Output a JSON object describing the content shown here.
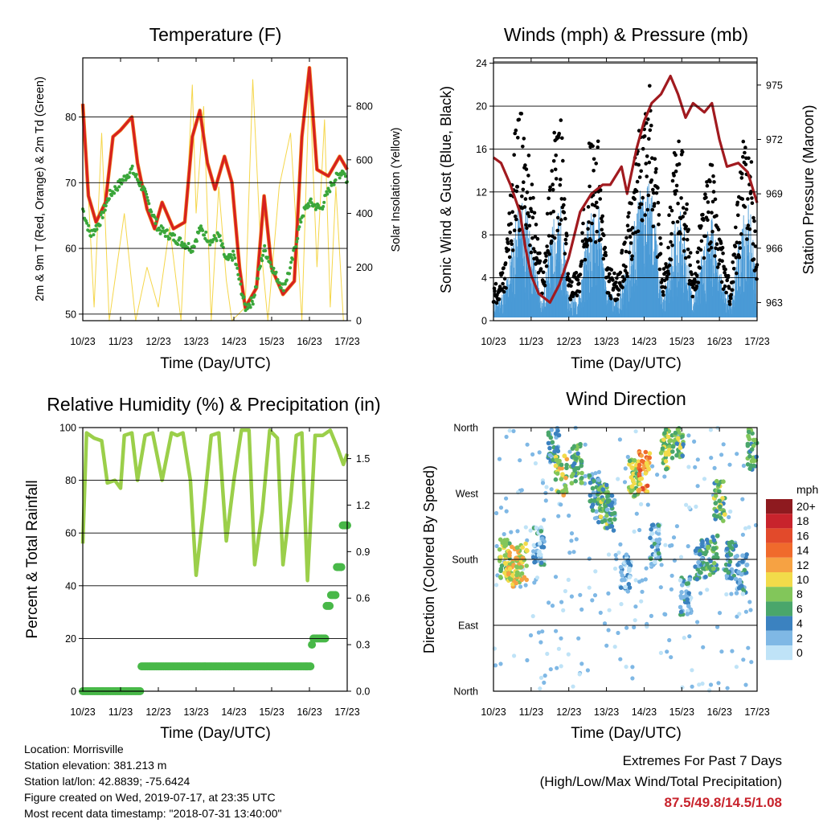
{
  "footer": {
    "location": "Location: Morrisville",
    "elevation": "Station elevation: 381.213 m",
    "latlon": "Station lat/lon: 42.8839; -75.6424",
    "created": "Figure created on Wed, 2019-07-17, at 23:35 UTC",
    "timestamp": "Most recent data timestamp: \"2018-07-31 13:40:00\""
  },
  "extremes": {
    "title": "Extremes For Past 7 Days",
    "subtitle": "(High/Low/Max Wind/Total Precipitation)",
    "values": "87.5/49.8/14.5/1.08"
  },
  "chart_data": [
    {
      "type": "line",
      "title": "Temperature (F)",
      "xlabel": "Time (Day/UTC)",
      "ylabel": "2m & 9m T (Red, Orange) & 2m Td (Green)",
      "ylabel_right": "Solar Insolation (Yellow)",
      "x_ticks": [
        "10/23",
        "11/23",
        "12/23",
        "13/23",
        "14/23",
        "15/23",
        "16/23",
        "17/23"
      ],
      "ylim": [
        49,
        89
      ],
      "y_ticks": [
        50,
        60,
        70,
        80
      ],
      "ylim_right": [
        0,
        980
      ],
      "y_ticks_right": [
        0,
        200,
        400,
        600,
        800
      ],
      "grid": "horizontal",
      "colors": {
        "temp_2m": "#d62020",
        "temp_9m": "#f07f1a",
        "dewpoint": "#3aa63a",
        "solar": "#f5d64a"
      },
      "series": [
        {
          "key": "temp_2m",
          "x": [
            0,
            0.15,
            0.35,
            0.6,
            0.8,
            1.0,
            1.3,
            1.45,
            1.7,
            1.9,
            2.1,
            2.4,
            2.7,
            2.9,
            3.1,
            3.3,
            3.5,
            3.75,
            3.95,
            4.15,
            4.3,
            4.6,
            4.8,
            5.0,
            5.3,
            5.6,
            5.8,
            6.0,
            6.2,
            6.5,
            6.8,
            7.0
          ],
          "y": [
            82,
            68,
            64,
            67,
            77,
            78,
            80,
            73,
            66,
            63,
            67,
            63,
            64,
            77,
            81,
            73,
            69,
            74,
            70,
            57,
            51,
            54,
            68,
            57,
            53,
            55,
            77,
            87.5,
            72,
            71,
            74,
            72
          ]
        },
        {
          "key": "dewpoint",
          "x": [
            0,
            0.2,
            0.45,
            0.7,
            1.0,
            1.3,
            1.6,
            2.0,
            2.3,
            2.6,
            2.9,
            3.1,
            3.4,
            3.6,
            3.8,
            4.0,
            4.3,
            4.5,
            4.8,
            5.1,
            5.3,
            5.5,
            5.8,
            6.0,
            6.3,
            6.6,
            6.9,
            7.0
          ],
          "y": [
            66,
            62,
            64,
            68,
            70,
            72,
            69,
            63,
            62,
            61,
            60,
            63,
            61,
            62,
            58,
            59,
            51,
            52,
            60,
            56,
            54,
            57,
            65,
            67,
            66,
            70,
            72,
            70
          ]
        },
        {
          "key": "solar",
          "x": [
            0.1,
            0.3,
            0.5,
            0.7,
            1.1,
            1.4,
            1.7,
            2.0,
            2.3,
            2.6,
            2.9,
            3.0,
            3.2,
            3.4,
            3.6,
            3.8,
            3.95,
            4.3,
            4.5,
            4.7,
            4.9,
            5.2,
            5.5,
            5.8,
            6.0,
            6.2,
            6.4,
            6.55,
            6.7,
            6.9
          ],
          "y": [
            600,
            50,
            700,
            0,
            400,
            0,
            200,
            50,
            350,
            0,
            880,
            400,
            800,
            0,
            500,
            150,
            0,
            50,
            900,
            300,
            0,
            500,
            700,
            0,
            900,
            200,
            750,
            50,
            500,
            0
          ]
        }
      ]
    },
    {
      "type": "scatter",
      "title": "Winds (mph) & Pressure (mb)",
      "xlabel": "Time (Day/UTC)",
      "ylabel": "Sonic Wind & Gust (Blue, Black)",
      "ylabel_right": "Station Pressure (Maroon)",
      "x_ticks": [
        "10/23",
        "11/23",
        "12/23",
        "13/23",
        "14/23",
        "15/23",
        "16/23",
        "17/23"
      ],
      "ylim": [
        0,
        24.5
      ],
      "y_ticks": [
        0,
        4,
        8,
        12,
        16,
        20,
        24
      ],
      "ylim_right": [
        962,
        976.5
      ],
      "y_ticks_right": [
        963,
        966,
        969,
        972,
        975
      ],
      "grid": "horizontal",
      "colors": {
        "wind": "#4a9ad6",
        "gust": "#000000",
        "pressure": "#a11a1f"
      },
      "series": [
        {
          "key": "gust_envelope",
          "x": [
            0,
            0.3,
            0.6,
            0.8,
            1.0,
            1.3,
            1.6,
            1.8,
            2.0,
            2.3,
            2.5,
            2.8,
            3.0,
            3.3,
            3.5,
            3.6,
            3.8,
            4.0,
            4.2,
            4.5,
            4.8,
            5.0,
            5.3,
            5.5,
            5.8,
            6.0,
            6.3,
            6.6,
            6.8,
            7.0
          ],
          "y": [
            3,
            5,
            18,
            19,
            13,
            4,
            17,
            18,
            4,
            5,
            16,
            16,
            5,
            4,
            8,
            10,
            16,
            22,
            21,
            4,
            15,
            17,
            3,
            10,
            15,
            8,
            3,
            16,
            17,
            6
          ]
        },
        {
          "key": "wind_envelope",
          "x": [
            0,
            0.3,
            0.6,
            0.8,
            1.0,
            1.3,
            1.6,
            1.8,
            2.0,
            2.3,
            2.5,
            2.8,
            3.0,
            3.3,
            3.5,
            3.6,
            3.8,
            4.0,
            4.2,
            4.5,
            4.8,
            5.0,
            5.3,
            5.5,
            5.8,
            6.0,
            6.3,
            6.6,
            6.8,
            7.0
          ],
          "y": [
            2,
            3,
            10,
            12,
            8,
            2,
            10,
            11,
            2,
            3,
            10,
            11,
            3,
            2,
            5,
            7,
            11,
            14,
            13,
            2,
            9,
            11,
            2,
            6,
            10,
            5,
            2,
            10,
            11,
            4
          ]
        },
        {
          "key": "pressure",
          "x": [
            0,
            0.2,
            0.45,
            0.7,
            0.85,
            1.0,
            1.2,
            1.5,
            1.75,
            2.0,
            2.3,
            2.6,
            2.9,
            3.1,
            3.4,
            3.55,
            3.8,
            4.0,
            4.2,
            4.45,
            4.7,
            4.9,
            5.1,
            5.3,
            5.6,
            5.8,
            6.0,
            6.2,
            6.5,
            6.75,
            7.0
          ],
          "y": [
            971,
            970.7,
            969.5,
            968,
            966,
            964.5,
            963.5,
            963,
            964,
            965.5,
            968,
            969,
            969.5,
            969.5,
            970.5,
            969,
            971.5,
            973,
            974,
            974.5,
            975.5,
            974.5,
            973.2,
            974,
            973.5,
            974,
            972,
            970.5,
            970.7,
            970.2,
            968.5
          ]
        }
      ]
    },
    {
      "type": "line",
      "title": "Relative Humidity (%) & Precipitation (in)",
      "xlabel": "Time (Day/UTC)",
      "ylabel": "Percent & Total Rainfall",
      "x_ticks": [
        "10/23",
        "11/23",
        "12/23",
        "13/23",
        "14/23",
        "15/23",
        "16/23",
        "17/23"
      ],
      "ylim": [
        0,
        100
      ],
      "y_ticks": [
        0,
        20,
        40,
        60,
        80,
        100
      ],
      "ylim_right": [
        0,
        1.7
      ],
      "y_ticks_right": [
        "0.0",
        "0.3",
        "0.6",
        "0.9",
        "1.2",
        "1.5"
      ],
      "grid": "horizontal",
      "colors": {
        "rh": "#9bcf4a",
        "precip": "#48b848"
      },
      "series": [
        {
          "key": "rh",
          "x": [
            0,
            0.1,
            0.3,
            0.5,
            0.65,
            0.85,
            1.0,
            1.1,
            1.3,
            1.45,
            1.65,
            1.85,
            2.1,
            2.35,
            2.5,
            2.65,
            2.85,
            3.0,
            3.2,
            3.4,
            3.6,
            3.8,
            4.0,
            4.2,
            4.4,
            4.55,
            4.75,
            4.95,
            5.15,
            5.3,
            5.5,
            5.65,
            5.8,
            5.95,
            6.15,
            6.35,
            6.55,
            6.75,
            6.9,
            7.0
          ],
          "y": [
            56,
            98,
            96,
            95,
            79,
            80,
            77,
            97,
            98,
            80,
            97,
            98,
            80,
            98,
            97,
            98,
            80,
            44,
            69,
            97,
            98,
            57,
            80,
            99,
            99,
            48,
            68,
            99,
            96,
            48,
            72,
            97,
            98,
            42,
            97,
            97,
            99,
            92,
            86,
            90
          ]
        },
        {
          "key": "precip",
          "x": [
            0,
            1.45,
            1.55,
            5.95,
            6.05,
            6.1,
            6.3,
            6.45,
            6.55,
            6.7,
            6.85,
            7.0
          ],
          "y": [
            0,
            0,
            0.16,
            0.16,
            0.3,
            0.34,
            0.34,
            0.55,
            0.62,
            0.8,
            1.07,
            1.07
          ]
        }
      ]
    },
    {
      "type": "scatter",
      "title": "Wind Direction",
      "xlabel": "Time (Day/UTC)",
      "ylabel": "Direction (Colored By Speed)",
      "x_ticks": [
        "10/23",
        "11/23",
        "12/23",
        "13/23",
        "14/23",
        "15/23",
        "16/23",
        "17/23"
      ],
      "y_ticks": [
        "North",
        "East",
        "South",
        "West",
        "North"
      ],
      "ylim": [
        0,
        360
      ],
      "legend": {
        "title": "mph",
        "labels": [
          "20+",
          "18",
          "16",
          "14",
          "12",
          "10",
          "8",
          "6",
          "4",
          "2",
          "0"
        ],
        "colors": [
          "#8e1a1f",
          "#c8232c",
          "#e24a2b",
          "#f06a2c",
          "#f6a243",
          "#f2db4a",
          "#82c65a",
          "#4aa66b",
          "#3b82c0",
          "#7fb8e5",
          "#bfe3f7"
        ]
      },
      "clusters": [
        {
          "t": 0.3,
          "dir": 180,
          "speed": 8
        },
        {
          "t": 0.55,
          "dir": 170,
          "speed": 10
        },
        {
          "t": 0.75,
          "dir": 175,
          "speed": 10
        },
        {
          "t": 1.2,
          "dir": 200,
          "speed": 3
        },
        {
          "t": 1.6,
          "dir": 340,
          "speed": 4
        },
        {
          "t": 1.8,
          "dir": 295,
          "speed": 9
        },
        {
          "t": 2.2,
          "dir": 310,
          "speed": 6
        },
        {
          "t": 2.7,
          "dir": 270,
          "speed": 5
        },
        {
          "t": 2.9,
          "dir": 255,
          "speed": 7
        },
        {
          "t": 3.1,
          "dir": 240,
          "speed": 5
        },
        {
          "t": 3.5,
          "dir": 160,
          "speed": 2
        },
        {
          "t": 3.75,
          "dir": 290,
          "speed": 8
        },
        {
          "t": 4.0,
          "dir": 300,
          "speed": 13
        },
        {
          "t": 4.3,
          "dir": 200,
          "speed": 3
        },
        {
          "t": 4.6,
          "dir": 330,
          "speed": 8
        },
        {
          "t": 4.9,
          "dir": 345,
          "speed": 7
        },
        {
          "t": 5.1,
          "dir": 130,
          "speed": 3
        },
        {
          "t": 5.5,
          "dir": 180,
          "speed": 4
        },
        {
          "t": 5.8,
          "dir": 185,
          "speed": 6
        },
        {
          "t": 6.0,
          "dir": 260,
          "speed": 7
        },
        {
          "t": 6.3,
          "dir": 180,
          "speed": 4
        },
        {
          "t": 6.6,
          "dir": 160,
          "speed": 3
        },
        {
          "t": 6.9,
          "dir": 330,
          "speed": 6
        }
      ]
    }
  ]
}
